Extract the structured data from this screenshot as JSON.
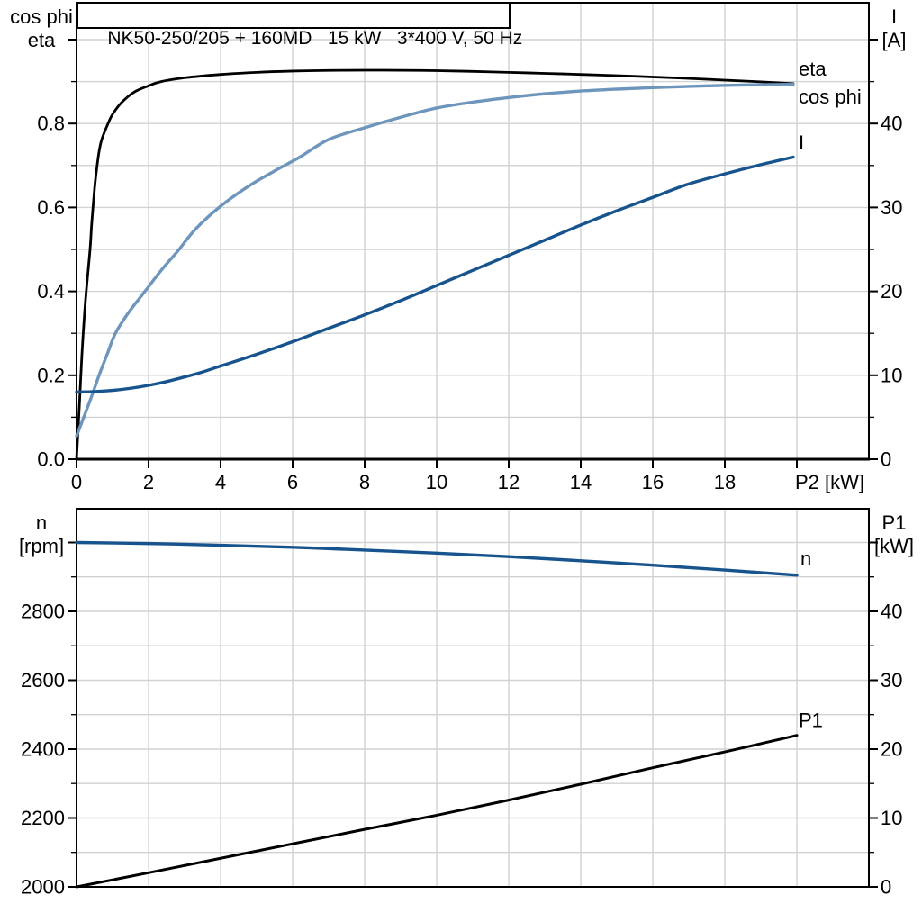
{
  "title": "NK50-250/205 + 160MD   15 kW   3*400 V, 50 Hz",
  "colors": {
    "black": "#000000",
    "light_blue": "#6e96bd",
    "dark_blue": "#17548d",
    "grid": "#d2d2d2",
    "frame": "#000000",
    "background": "#ffffff"
  },
  "chart_data": [
    {
      "type": "line",
      "title": "NK50-250/205 + 160MD   15 kW   3*400 V, 50 Hz",
      "x_axis": {
        "label": "P2 [kW]",
        "min": 0,
        "max": 22,
        "grid_values": [
          2,
          4,
          6,
          8,
          10,
          12,
          14,
          16,
          18,
          20
        ],
        "ticks": [
          {
            "v": 0,
            "label": "0"
          },
          {
            "v": 2,
            "label": "2"
          },
          {
            "v": 4,
            "label": "4"
          },
          {
            "v": 6,
            "label": "6"
          },
          {
            "v": 8,
            "label": "8"
          },
          {
            "v": 10,
            "label": "10"
          },
          {
            "v": 12,
            "label": "12"
          },
          {
            "v": 14,
            "label": "14"
          },
          {
            "v": 16,
            "label": "16"
          },
          {
            "v": 18,
            "label": "18"
          },
          {
            "v": 20,
            "label": "P2 [kW]",
            "align": "start"
          }
        ]
      },
      "y_left": {
        "unit_lines": [
          "cos phi",
          "eta"
        ],
        "min": 0,
        "max": 1.088,
        "grid_values": [
          0.1,
          0.2,
          0.3,
          0.4,
          0.5,
          0.6,
          0.7,
          0.8,
          0.9,
          1.0
        ],
        "major_ticks": [
          {
            "v": 0,
            "label": "0.0"
          },
          {
            "v": 0.2,
            "label": "0.2"
          },
          {
            "v": 0.4,
            "label": "0.4"
          },
          {
            "v": 0.6,
            "label": "0.6"
          },
          {
            "v": 0.8,
            "label": "0.8"
          },
          {
            "v": 1.0,
            "label": ""
          }
        ],
        "minor_ticks": [
          0.1,
          0.3,
          0.5,
          0.7,
          0.9
        ]
      },
      "y_right": {
        "unit_lines": [
          "I",
          "[A]"
        ],
        "min": 0,
        "max": 54.4,
        "major_ticks": [
          {
            "v": 0,
            "label": "0"
          },
          {
            "v": 10,
            "label": "10"
          },
          {
            "v": 20,
            "label": "20"
          },
          {
            "v": 30,
            "label": "30"
          },
          {
            "v": 40,
            "label": "40"
          },
          {
            "v": 50,
            "label": ""
          }
        ],
        "minor_ticks": [
          5,
          15,
          25,
          35,
          45
        ]
      },
      "series": [
        {
          "name": "eta",
          "color": "black",
          "axis": "left",
          "width": 2.8,
          "label": {
            "text": "eta",
            "x": 20.05,
            "y": 0.914
          },
          "points": [
            [
              0,
              0
            ],
            [
              0.08,
              0.13
            ],
            [
              0.15,
              0.25
            ],
            [
              0.25,
              0.38
            ],
            [
              0.375,
              0.5
            ],
            [
              0.42,
              0.56
            ],
            [
              0.5,
              0.645
            ],
            [
              0.55,
              0.685
            ],
            [
              0.62,
              0.73
            ],
            [
              0.7,
              0.762
            ],
            [
              0.875,
              0.8
            ],
            [
              1.0,
              0.822
            ],
            [
              1.25,
              0.85
            ],
            [
              1.6,
              0.875
            ],
            [
              2.0,
              0.89
            ],
            [
              2.35,
              0.9
            ],
            [
              3,
              0.909
            ],
            [
              4,
              0.917
            ],
            [
              5,
              0.922
            ],
            [
              6,
              0.925
            ],
            [
              7,
              0.9265
            ],
            [
              8,
              0.927
            ],
            [
              9,
              0.9268
            ],
            [
              10,
              0.926
            ],
            [
              11,
              0.9242
            ],
            [
              12,
              0.922
            ],
            [
              13,
              0.9196
            ],
            [
              14,
              0.917
            ],
            [
              15,
              0.9142
            ],
            [
              16,
              0.911
            ],
            [
              17,
              0.9075
            ],
            [
              18,
              0.9035
            ],
            [
              19,
              0.8995
            ],
            [
              19.9,
              0.895
            ]
          ]
        },
        {
          "name": "cos phi",
          "color": "light_blue",
          "axis": "left",
          "width": 3.4,
          "label": {
            "text": "cos phi",
            "x": 20.05,
            "y": 0.848
          },
          "points": [
            [
              0,
              0.055
            ],
            [
              0.2,
              0.1
            ],
            [
              0.42,
              0.15
            ],
            [
              0.625,
              0.2
            ],
            [
              0.85,
              0.25
            ],
            [
              1.08,
              0.3
            ],
            [
              1.45,
              0.35
            ],
            [
              1.9,
              0.4
            ],
            [
              2.35,
              0.45
            ],
            [
              2.8,
              0.495
            ],
            [
              3.3,
              0.548
            ],
            [
              4,
              0.603
            ],
            [
              4.8,
              0.652
            ],
            [
              5.5,
              0.687
            ],
            [
              6.2,
              0.72
            ],
            [
              7,
              0.762
            ],
            [
              8,
              0.79
            ],
            [
              9,
              0.815
            ],
            [
              10,
              0.837
            ],
            [
              11,
              0.851
            ],
            [
              12,
              0.862
            ],
            [
              13,
              0.871
            ],
            [
              14,
              0.8775
            ],
            [
              15,
              0.882
            ],
            [
              16,
              0.8855
            ],
            [
              17,
              0.8885
            ],
            [
              18,
              0.891
            ],
            [
              19,
              0.8925
            ],
            [
              19.9,
              0.8935
            ]
          ]
        },
        {
          "name": "I",
          "color": "dark_blue",
          "axis": "right",
          "width": 3.4,
          "label": {
            "text": "I",
            "x": 20.05,
            "y": 36.9
          },
          "points": [
            [
              0,
              8.0
            ],
            [
              0.5,
              8.05
            ],
            [
              1,
              8.2
            ],
            [
              1.5,
              8.45
            ],
            [
              2,
              8.8
            ],
            [
              2.5,
              9.25
            ],
            [
              3,
              9.8
            ],
            [
              3.5,
              10.4
            ],
            [
              4,
              11.1
            ],
            [
              5,
              12.5
            ],
            [
              6,
              14.0
            ],
            [
              7,
              15.6
            ],
            [
              8,
              17.2
            ],
            [
              9,
              18.9
            ],
            [
              10,
              20.7
            ],
            [
              11,
              22.5
            ],
            [
              12,
              24.3
            ],
            [
              13,
              26.1
            ],
            [
              14,
              27.9
            ],
            [
              15,
              29.6
            ],
            [
              16,
              31.2
            ],
            [
              17,
              32.8
            ],
            [
              18,
              34.0
            ],
            [
              19,
              35.1
            ],
            [
              19.9,
              36.0
            ]
          ]
        }
      ]
    },
    {
      "type": "line",
      "x_axis": {
        "min": 0,
        "max": 22,
        "grid_values": [
          2,
          4,
          6,
          8,
          10,
          12,
          14,
          16,
          18,
          20
        ],
        "ticks": []
      },
      "y_left": {
        "unit_lines": [
          "n",
          "[rpm]"
        ],
        "min": 2000,
        "max": 3098,
        "grid_values": [
          2100,
          2200,
          2300,
          2400,
          2500,
          2600,
          2700,
          2800,
          2900,
          3000
        ],
        "major_ticks": [
          {
            "v": 2000,
            "label": "2000"
          },
          {
            "v": 2200,
            "label": "2200"
          },
          {
            "v": 2400,
            "label": "2400"
          },
          {
            "v": 2600,
            "label": "2600"
          },
          {
            "v": 2800,
            "label": "2800"
          },
          {
            "v": 3000,
            "label": ""
          }
        ],
        "minor_ticks": [
          2100,
          2300,
          2500,
          2700,
          2900
        ]
      },
      "y_right": {
        "unit_lines": [
          "P1",
          "[kW]"
        ],
        "min": 0,
        "max": 54.9,
        "major_ticks": [
          {
            "v": 0,
            "label": "0"
          },
          {
            "v": 10,
            "label": "10"
          },
          {
            "v": 20,
            "label": "20"
          },
          {
            "v": 30,
            "label": "30"
          },
          {
            "v": 40,
            "label": "40"
          },
          {
            "v": 50,
            "label": ""
          }
        ],
        "minor_ticks": [
          5,
          15,
          25,
          35,
          45
        ]
      },
      "series": [
        {
          "name": "n",
          "color": "dark_blue",
          "axis": "left",
          "width": 3.4,
          "label": {
            "text": "n",
            "x": 20.1,
            "y": 2933
          },
          "points": [
            [
              0,
              3000
            ],
            [
              2,
              2997
            ],
            [
              4,
              2992
            ],
            [
              6,
              2986
            ],
            [
              8,
              2978
            ],
            [
              10,
              2969
            ],
            [
              12,
              2959
            ],
            [
              14,
              2947
            ],
            [
              16,
              2934
            ],
            [
              18,
              2920
            ],
            [
              20,
              2905
            ]
          ]
        },
        {
          "name": "P1",
          "color": "black",
          "axis": "right",
          "width": 3.0,
          "label": {
            "text": "P1",
            "x": 20.05,
            "y": 23.2
          },
          "points": [
            [
              0,
              0
            ],
            [
              2,
              2.05
            ],
            [
              4,
              4.15
            ],
            [
              6,
              6.25
            ],
            [
              8,
              8.35
            ],
            [
              10,
              10.4
            ],
            [
              12,
              12.6
            ],
            [
              14,
              14.9
            ],
            [
              16,
              17.3
            ],
            [
              18,
              19.6
            ],
            [
              20,
              22.0
            ]
          ]
        }
      ]
    }
  ]
}
